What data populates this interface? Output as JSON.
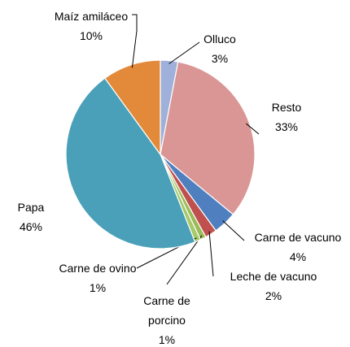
{
  "chart_data": {
    "type": "pie",
    "categories": [
      "Olluco",
      "Resto",
      "Carne de vacuno",
      "Leche de vacuno",
      "Carne de porcino",
      "Carne de ovino",
      "Papa",
      "Maíz amiláceo"
    ],
    "values": [
      3,
      33,
      4,
      2,
      1,
      1,
      46,
      10
    ],
    "value_labels": [
      "3%",
      "33%",
      "4%",
      "2%",
      "1%",
      "1%",
      "46%",
      "10%"
    ],
    "colors": [
      "#9fb1db",
      "#d99694",
      "#4f7fbf",
      "#c0504d",
      "#9bbb59",
      "#a6c96a",
      "#4aa0b8",
      "#e38a3a"
    ]
  }
}
